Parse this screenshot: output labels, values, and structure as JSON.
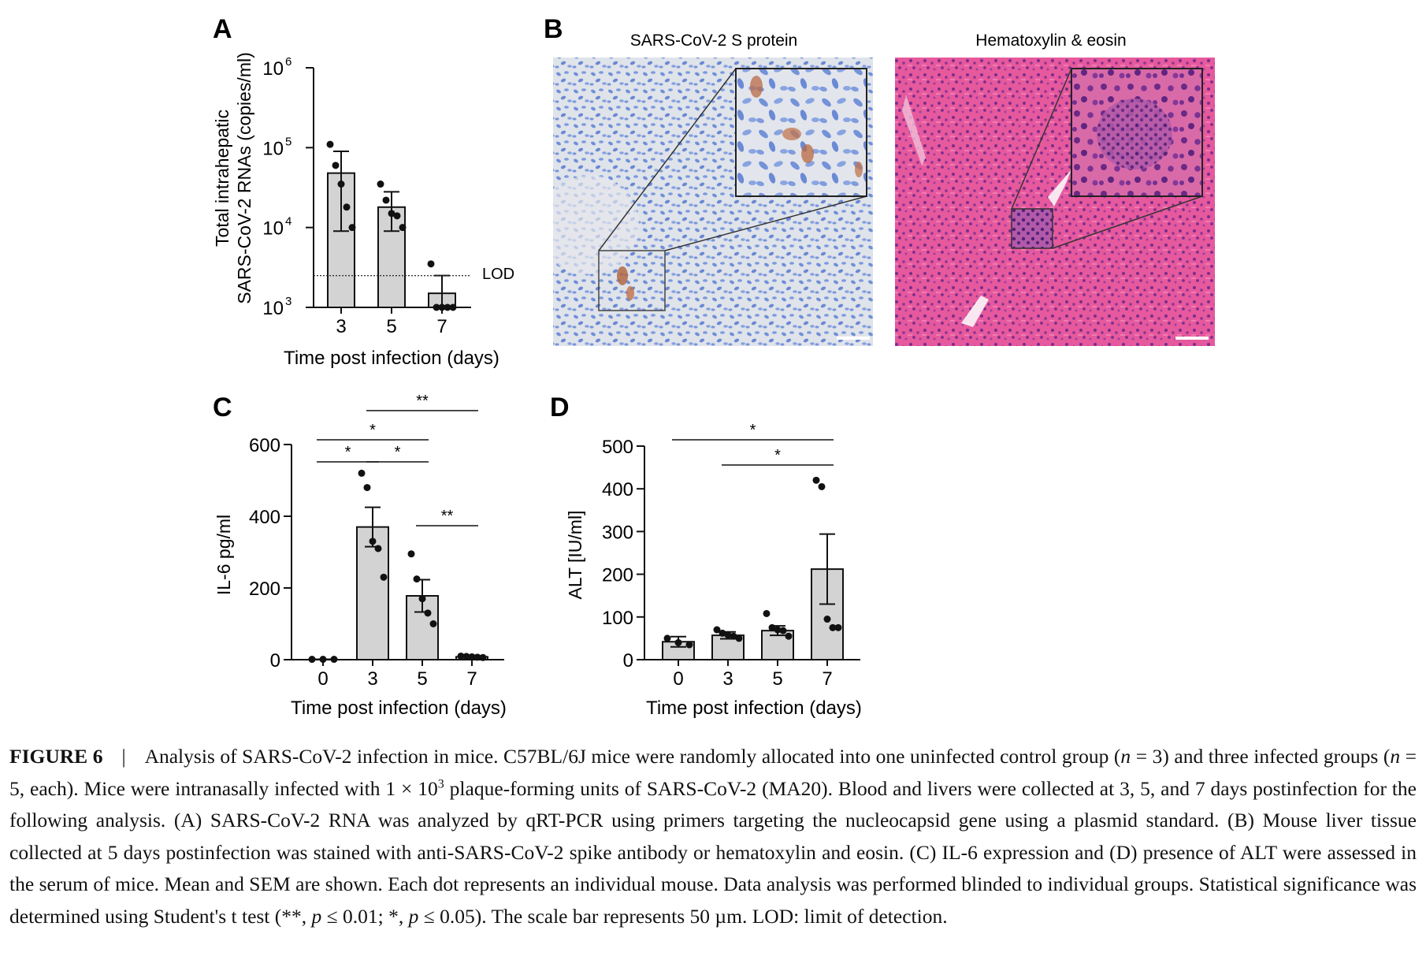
{
  "panel_letters": {
    "a": "A",
    "b": "B",
    "c": "C",
    "d": "D"
  },
  "chart_data": [
    {
      "panel": "A",
      "type": "bar",
      "y_scale": "log",
      "ylim": [
        1000,
        1000000
      ],
      "categories": [
        "3",
        "5",
        "7"
      ],
      "values": [
        48000,
        18000,
        1500
      ],
      "error_upper": [
        90000,
        28000,
        2500
      ],
      "error_lower": [
        9000,
        9000,
        1000
      ],
      "points": [
        [
          110000,
          60000,
          35000,
          18000,
          10000
        ],
        [
          35000,
          22000,
          15000,
          14000,
          10000
        ],
        [
          3500,
          1000,
          1000,
          1000,
          1000
        ]
      ],
      "lod": 2500,
      "lod_label": "LOD",
      "ylabel_line1": "Total intrahepatic",
      "ylabel_line2": "SARS-CoV-2 RNAs (copies/ml)",
      "xlabel": "Time post infection (days)",
      "ytick_base": "10",
      "ytick_exponents": [
        "3",
        "4",
        "5",
        "6"
      ]
    },
    {
      "panel": "C",
      "type": "bar",
      "ylim": [
        0,
        600
      ],
      "yticks": [
        "0",
        "200",
        "400",
        "600"
      ],
      "categories": [
        "0",
        "3",
        "5",
        "7"
      ],
      "values": [
        0,
        370,
        178,
        8
      ],
      "sem": [
        1,
        55,
        45,
        2
      ],
      "points": [
        [
          1,
          1,
          1
        ],
        [
          520,
          480,
          330,
          310,
          230
        ],
        [
          295,
          225,
          170,
          130,
          100
        ],
        [
          10,
          9,
          8,
          7,
          6
        ]
      ],
      "ylabel": "IL-6 pg/ml",
      "xlabel": "Time post infection (days)",
      "significance": [
        {
          "from": "0",
          "to": "3",
          "label": "*"
        },
        {
          "from": "3",
          "to": "5",
          "label": "*"
        },
        {
          "from": "0",
          "to": "5",
          "label": "*"
        },
        {
          "from": "5",
          "to": "7",
          "label": "**"
        },
        {
          "from": "3",
          "to": "7",
          "label": "**"
        }
      ]
    },
    {
      "panel": "D",
      "type": "bar",
      "ylim": [
        0,
        500
      ],
      "yticks": [
        "0",
        "100",
        "200",
        "300",
        "400",
        "500"
      ],
      "categories": [
        "0",
        "3",
        "5",
        "7"
      ],
      "values": [
        42,
        57,
        68,
        212
      ],
      "sem": [
        12,
        8,
        11,
        82
      ],
      "points": [
        [
          50,
          40,
          35
        ],
        [
          70,
          62,
          58,
          55,
          50
        ],
        [
          108,
          75,
          70,
          68,
          55
        ],
        [
          420,
          405,
          95,
          75,
          75
        ]
      ],
      "ylabel": "ALT [IU/ml]",
      "xlabel": "Time post infection (days)",
      "significance": [
        {
          "from": "0",
          "to": "7",
          "label": "*"
        },
        {
          "from": "3",
          "to": "7",
          "label": "*"
        }
      ]
    }
  ],
  "panel_b": {
    "left_title": "SARS-CoV-2 S protein",
    "right_title": "Hematoxylin & eosin"
  },
  "colors": {
    "bar_fill": "#d3d3d3",
    "ihc_bg": "#dfe3ea",
    "he_bg": "#e4579b"
  },
  "caption": {
    "label": "FIGURE 6",
    "separator": "|",
    "seg1": "Analysis of SARS-CoV-2 infection in mice. C57BL/6J mice were randomly allocated into one uninfected control group (",
    "n_var": "n",
    "n_control": " = 3) and three infected groups (",
    "n_infected": " = 5, each). Mice were intranasally infected with 1 × 10",
    "exp": "3",
    "seg2": " plaque-forming units of SARS-CoV-2 (MA20). Blood and livers were collected at 3, 5, and 7 days postinfection for the following analysis. (A) SARS-CoV-2 RNA was analyzed by qRT-PCR using primers targeting the nucleocapsid gene using a plasmid standard. (B) Mouse liver tissue collected at 5 days postinfection was stained with anti-SARS-CoV-2 spike antibody or hematoxylin and eosin. (C) IL-6 expression and (D) presence of ALT were assessed in the serum of mice. Mean and SEM are shown. Each dot represents an individual mouse. Data analysis was performed blinded to individual groups. Statistical significance was determined using Student's t test (**, ",
    "p_var": "p",
    "p1": " ≤ 0.01; *, ",
    "p2": " ≤ 0.05). The scale bar represents 50 µm. LOD: limit of detection."
  }
}
